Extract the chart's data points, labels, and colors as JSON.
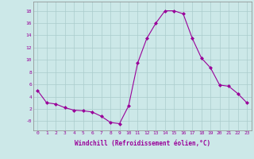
{
  "hours": [
    0,
    1,
    2,
    3,
    4,
    5,
    6,
    7,
    8,
    9,
    10,
    11,
    12,
    13,
    14,
    15,
    16,
    17,
    18,
    19,
    20,
    21,
    22,
    23
  ],
  "values": [
    5.0,
    3.0,
    2.8,
    2.2,
    1.8,
    1.7,
    1.5,
    0.8,
    -0.2,
    -0.4,
    2.5,
    9.5,
    13.5,
    16.0,
    18.0,
    18.0,
    17.5,
    13.5,
    10.3,
    8.7,
    5.9,
    5.7,
    4.5,
    3.0
  ],
  "line_color": "#990099",
  "marker": "D",
  "marker_size": 2,
  "bg_color": "#cce8e8",
  "grid_color": "#aacccc",
  "xlabel": "Windchill (Refroidissement éolien,°C)",
  "xlabel_color": "#990099",
  "tick_color": "#990099",
  "ylim": [
    -1.5,
    19.5
  ],
  "yticks": [
    0,
    2,
    4,
    6,
    8,
    10,
    12,
    14,
    16,
    18
  ],
  "ytick_labels": [
    "-0",
    "2",
    "4",
    "6",
    "8",
    "10",
    "12",
    "14",
    "16",
    "18"
  ],
  "xlim": [
    -0.5,
    23.5
  ]
}
